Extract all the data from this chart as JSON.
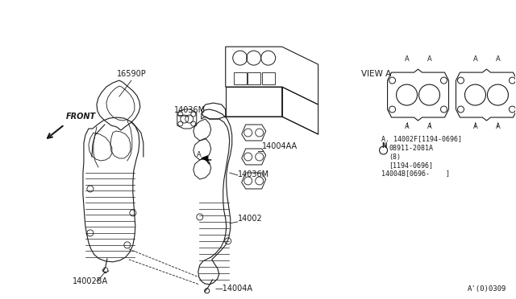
{
  "bg_color": "#ffffff",
  "line_color": "#1a1a1a",
  "fig_width": 6.4,
  "fig_height": 3.72,
  "dpi": 100,
  "labels": {
    "front": "FRONT",
    "view_a": "VIEW A",
    "part_16590P": "16590P",
    "part_14036M_1": "14036M",
    "part_14036M_2": "14036M",
    "part_14004AA": "14004AA",
    "part_14002": "14002",
    "part_14002BA": "14002BA",
    "part_14004A": "14004A",
    "part_note1": "A. 14002F[1194-0696]",
    "part_note2": "08911-2081A",
    "part_note3": "(8)",
    "part_note4": "[1194-0696]",
    "part_note5": "14004B[0696-    ]",
    "diagram_id": "A'(0)0309"
  }
}
